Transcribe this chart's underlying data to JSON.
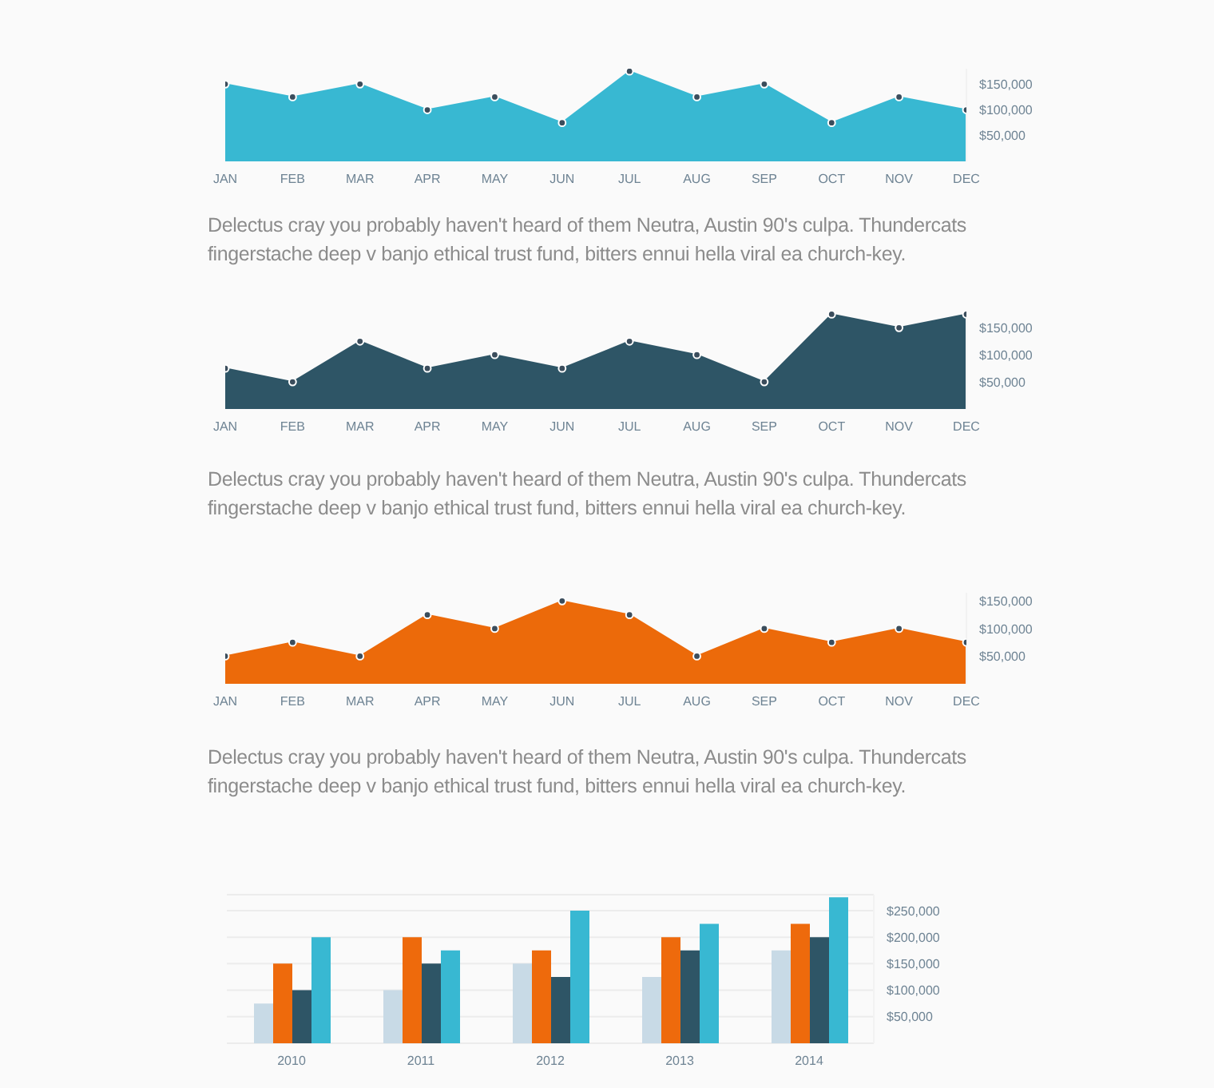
{
  "chart_data": [
    {
      "type": "area",
      "categories": [
        "JAN",
        "FEB",
        "MAR",
        "APR",
        "MAY",
        "JUN",
        "JUL",
        "AUG",
        "SEP",
        "OCT",
        "NOV",
        "DEC"
      ],
      "series": [
        {
          "color": "#38b8d2",
          "values": [
            150000,
            125000,
            150000,
            100000,
            125000,
            75000,
            175000,
            125000,
            150000,
            75000,
            125000,
            100000
          ]
        }
      ],
      "ylim": [
        0,
        180000
      ],
      "yticks": [
        {
          "value": 50000,
          "label": "$50,000"
        },
        {
          "value": 100000,
          "label": "$100,000"
        },
        {
          "value": 150000,
          "label": "$150,000"
        }
      ],
      "marker": "circle",
      "grid": false,
      "legend": false,
      "annotations": [
        "Delectus cray you probably haven't heard of them Neutra, Austin 90's culpa. Thundercats fingerstache deep v banjo ethical trust fund, bitters ennui hella viral ea church-key."
      ]
    },
    {
      "type": "area",
      "categories": [
        "JAN",
        "FEB",
        "MAR",
        "APR",
        "MAY",
        "JUN",
        "JUL",
        "AUG",
        "SEP",
        "OCT",
        "NOV",
        "DEC"
      ],
      "series": [
        {
          "color": "#2e5566",
          "values": [
            75000,
            50000,
            125000,
            75000,
            100000,
            75000,
            125000,
            100000,
            50000,
            175000,
            150000,
            175000
          ]
        }
      ],
      "ylim": [
        0,
        180000
      ],
      "yticks": [
        {
          "value": 50000,
          "label": "$50,000"
        },
        {
          "value": 100000,
          "label": "$100,000"
        },
        {
          "value": 150000,
          "label": "$150,000"
        }
      ],
      "marker": "circle",
      "grid": false,
      "legend": false,
      "annotations": [
        "Delectus cray you probably haven't heard of them Neutra, Austin 90's culpa. Thundercats fingerstache deep v banjo ethical trust fund, bitters ennui hella viral ea church-key."
      ]
    },
    {
      "type": "area",
      "categories": [
        "JAN",
        "FEB",
        "MAR",
        "APR",
        "MAY",
        "JUN",
        "JUL",
        "AUG",
        "SEP",
        "OCT",
        "NOV",
        "DEC"
      ],
      "series": [
        {
          "color": "#ec6a0a",
          "values": [
            50000,
            75000,
            50000,
            125000,
            100000,
            150000,
            125000,
            50000,
            100000,
            75000,
            100000,
            75000
          ]
        }
      ],
      "ylim": [
        0,
        165000
      ],
      "yticks": [
        {
          "value": 50000,
          "label": "$50,000"
        },
        {
          "value": 100000,
          "label": "$100,000"
        },
        {
          "value": 150000,
          "label": "$150,000"
        }
      ],
      "marker": "circle",
      "grid": false,
      "legend": false,
      "annotations": [
        "Delectus cray you probably haven't heard of them Neutra, Austin 90's culpa. Thundercats fingerstache deep v banjo ethical trust fund, bitters ennui hella viral ea church-key."
      ]
    },
    {
      "type": "bar",
      "categories": [
        "2010",
        "2011",
        "2012",
        "2013",
        "2014"
      ],
      "series": [
        {
          "color": "#c8dae6",
          "values": [
            75000,
            100000,
            150000,
            125000,
            175000
          ]
        },
        {
          "color": "#ee6a0c",
          "values": [
            150000,
            200000,
            175000,
            200000,
            225000
          ]
        },
        {
          "color": "#2e5566",
          "values": [
            100000,
            150000,
            125000,
            175000,
            200000
          ]
        },
        {
          "color": "#38b8d2",
          "values": [
            200000,
            175000,
            250000,
            225000,
            275000
          ]
        }
      ],
      "ylim": [
        0,
        280000
      ],
      "yticks": [
        {
          "value": 50000,
          "label": "$50,000"
        },
        {
          "value": 100000,
          "label": "$100,000"
        },
        {
          "value": 150000,
          "label": "$150,000"
        },
        {
          "value": 200000,
          "label": "$200,000"
        },
        {
          "value": 250000,
          "label": "$250,000"
        }
      ],
      "grid": "y",
      "legend": false
    }
  ]
}
